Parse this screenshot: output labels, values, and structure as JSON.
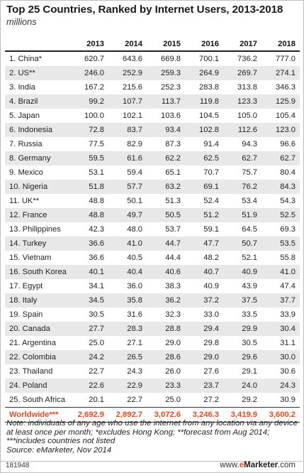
{
  "chart_data": {
    "type": "table",
    "title": "Top 25 Countries, Ranked by Internet Users, 2013-2018",
    "subtitle": "millions",
    "columns": [
      "2013",
      "2014",
      "2015",
      "2016",
      "2017",
      "2018"
    ],
    "rows": [
      {
        "name": "1. China*",
        "values": [
          "620.7",
          "643.6",
          "669.8",
          "700.1",
          "736.2",
          "777.0"
        ]
      },
      {
        "name": "2. US**",
        "values": [
          "246.0",
          "252.9",
          "259.3",
          "264.9",
          "269.7",
          "274.1"
        ]
      },
      {
        "name": "3. India",
        "values": [
          "167.2",
          "215.6",
          "252.3",
          "283.8",
          "313.8",
          "346.3"
        ]
      },
      {
        "name": "4. Brazil",
        "values": [
          "99.2",
          "107.7",
          "113.7",
          "119.8",
          "123.3",
          "125.9"
        ]
      },
      {
        "name": "5. Japan",
        "values": [
          "100.0",
          "102.1",
          "103.6",
          "104.5",
          "105.0",
          "105.4"
        ]
      },
      {
        "name": "6. Indonesia",
        "values": [
          "72.8",
          "83.7",
          "93.4",
          "102.8",
          "112.6",
          "123.0"
        ]
      },
      {
        "name": "7. Russia",
        "values": [
          "77.5",
          "82.9",
          "87.3",
          "91.4",
          "94.3",
          "96.6"
        ]
      },
      {
        "name": "8. Germany",
        "values": [
          "59.5",
          "61.6",
          "62.2",
          "62.5",
          "62.7",
          "62.7"
        ]
      },
      {
        "name": "9. Mexico",
        "values": [
          "53.1",
          "59.4",
          "65.1",
          "70.7",
          "75.7",
          "80.4"
        ]
      },
      {
        "name": "10. Nigeria",
        "values": [
          "51.8",
          "57.7",
          "63.2",
          "69.1",
          "76.2",
          "84.3"
        ]
      },
      {
        "name": "11. UK**",
        "values": [
          "48.8",
          "50.1",
          "51.3",
          "52.4",
          "53.4",
          "54.3"
        ]
      },
      {
        "name": "12. France",
        "values": [
          "48.8",
          "49.7",
          "50.5",
          "51.2",
          "51.9",
          "52.5"
        ]
      },
      {
        "name": "13. Philippines",
        "values": [
          "42.3",
          "48.0",
          "53.7",
          "59.1",
          "64.5",
          "69.3"
        ]
      },
      {
        "name": "14. Turkey",
        "values": [
          "36.6",
          "41.0",
          "44.7",
          "47.7",
          "50.7",
          "53.5"
        ]
      },
      {
        "name": "15. Vietnam",
        "values": [
          "36.6",
          "40.5",
          "44.4",
          "48.2",
          "52.1",
          "55.8"
        ]
      },
      {
        "name": "16. South Korea",
        "values": [
          "40.1",
          "40.4",
          "40.6",
          "40.7",
          "40.9",
          "41.0"
        ]
      },
      {
        "name": "17. Egypt",
        "values": [
          "34.1",
          "36.0",
          "38.3",
          "40.9",
          "43.9",
          "47.4"
        ]
      },
      {
        "name": "18. Italy",
        "values": [
          "34.5",
          "35.8",
          "36.2",
          "37.2",
          "37.5",
          "37.7"
        ]
      },
      {
        "name": "19. Spain",
        "values": [
          "30.5",
          "31.6",
          "32.3",
          "33.0",
          "33.5",
          "33.9"
        ]
      },
      {
        "name": "20. Canada",
        "values": [
          "27.7",
          "28.3",
          "28.8",
          "29.4",
          "29.9",
          "30.4"
        ]
      },
      {
        "name": "21. Argentina",
        "values": [
          "25.0",
          "27.1",
          "29.0",
          "29.8",
          "30.5",
          "31.1"
        ]
      },
      {
        "name": "22. Colombia",
        "values": [
          "24.2",
          "26.5",
          "28.6",
          "29.0",
          "29.6",
          "30.0"
        ]
      },
      {
        "name": "23. Thailand",
        "values": [
          "22.7",
          "24.3",
          "26.0",
          "27.6",
          "29.1",
          "30.6"
        ]
      },
      {
        "name": "24. Poland",
        "values": [
          "22.6",
          "22.9",
          "23.3",
          "23.7",
          "24.0",
          "24.3"
        ]
      },
      {
        "name": "25. South Africa",
        "values": [
          "20.1",
          "22.7",
          "25.0",
          "27.2",
          "29.2",
          "30.9"
        ]
      }
    ],
    "total": {
      "name": "Worldwide***",
      "values": [
        "2,692.9",
        "2,892.7",
        "3,072.6",
        "3,246.3",
        "3,419.9",
        "3,600.2"
      ]
    },
    "note": "Note: individuals of any age who use the internet from any location via any device at least once per month; *excludes Hong Kong; **forecast from Aug 2014; ***includes countries not listed",
    "source": "Source: eMarketer, Nov 2014",
    "code": "181948",
    "highlight_color": "#e8481e"
  },
  "brand": {
    "prefix": "www.",
    "e": "e",
    "name": "Marketer",
    "suffix": ".com"
  }
}
